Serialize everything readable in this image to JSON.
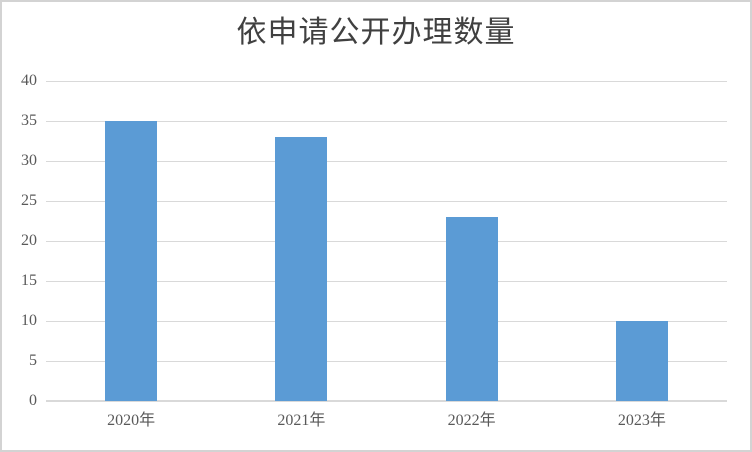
{
  "title": "依申请公开办理数量",
  "chart_data": {
    "type": "bar",
    "title": "依申请公开办理数量",
    "categories": [
      "2020年",
      "2021年",
      "2022年",
      "2023年"
    ],
    "values": [
      35,
      33,
      23,
      10
    ],
    "xlabel": "",
    "ylabel": "",
    "ylim": [
      0,
      40
    ],
    "yticks": [
      0,
      5,
      10,
      15,
      20,
      25,
      30,
      35,
      40
    ],
    "grid": true,
    "legend": false,
    "colors": {
      "bar": "#5B9BD5",
      "gridline": "#D9D9D9",
      "axis_text": "#595959",
      "title_text": "#404040",
      "frame_border": "#D3D3D3",
      "background": "#FFFFFF"
    }
  }
}
